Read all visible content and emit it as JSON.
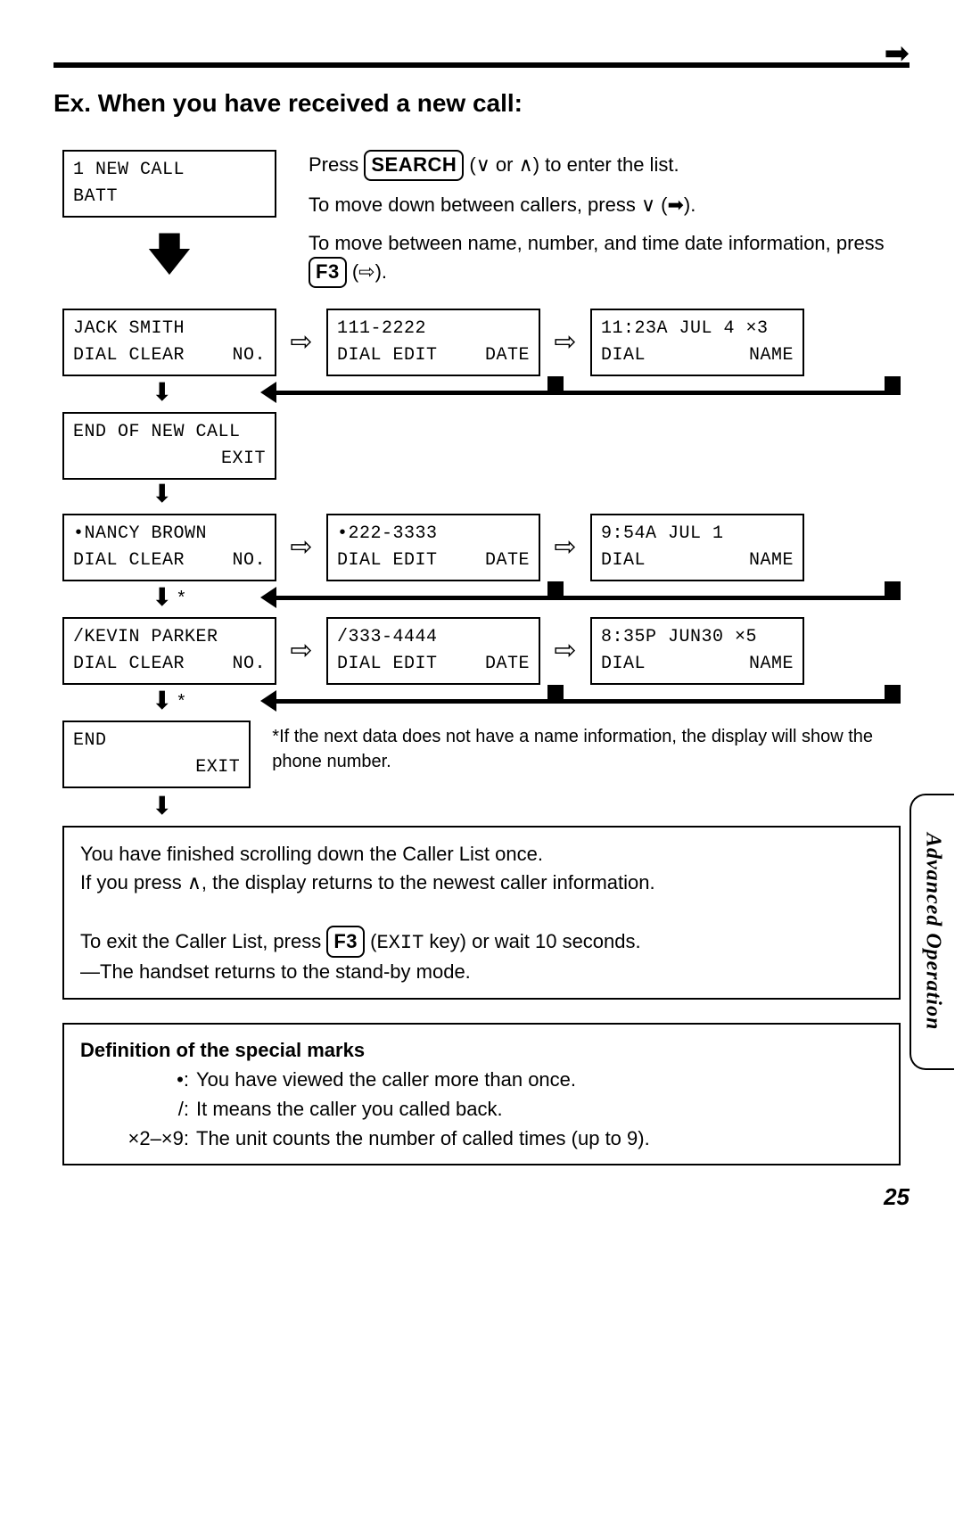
{
  "page_number": "25",
  "side_tab": "Advanced Operation",
  "title": "Ex. When you have received a new call:",
  "intro": {
    "screen": {
      "line1": "1 NEW CALL",
      "line2": "BATT"
    },
    "p1_a": "Press ",
    "key_search": "SEARCH",
    "p1_b": " (∨ or ∧) to enter the list.",
    "p2": "To move down between callers, press ∨ (➡).",
    "p3_a": "To move between name, number, and time date information, press ",
    "key_f3": "F3",
    "p3_b": " (⇨)."
  },
  "rows": [
    {
      "a": {
        "l1": "JACK SMITH",
        "l2a": "DIAL CLEAR",
        "l2b": "NO."
      },
      "b": {
        "l1": "111-2222",
        "l2a": "DIAL EDIT",
        "l2b": "DATE"
      },
      "c": {
        "l1": "11:23A JUL 4 ×3",
        "l2a": "DIAL",
        "l2b": "NAME"
      },
      "star": false
    },
    {
      "mid": {
        "l1": "END OF NEW CALL",
        "l2b": "EXIT"
      }
    },
    {
      "a": {
        "l1": "•NANCY BROWN",
        "l2a": "DIAL CLEAR",
        "l2b": "NO."
      },
      "b": {
        "l1": "•222-3333",
        "l2a": "DIAL EDIT",
        "l2b": "DATE"
      },
      "c": {
        "l1": "9:54A JUL 1",
        "l2a": "DIAL",
        "l2b": "NAME"
      },
      "star": true
    },
    {
      "a": {
        "l1": "/KEVIN PARKER",
        "l2a": "DIAL CLEAR",
        "l2b": "NO."
      },
      "b": {
        "l1": "/333-4444",
        "l2a": "DIAL EDIT",
        "l2b": "DATE"
      },
      "c": {
        "l1": "8:35P JUN30 ×5",
        "l2a": "DIAL",
        "l2b": "NAME"
      },
      "star": true
    }
  ],
  "end_box": {
    "l1": "END",
    "l2b": "EXIT"
  },
  "note_star": "*If the next data does not have a name information, the display will show the phone number.",
  "info": {
    "l1": "You have finished scrolling down the Caller List once.",
    "l2": "If you press ∧, the display returns to the newest caller information.",
    "l3_a": "To exit the Caller List, press ",
    "l3_key": "F3",
    "l3_b": " (",
    "l3_mono": "EXIT",
    "l3_c": " key) or wait 10 seconds.",
    "l4": "—The handset returns to the stand-by mode."
  },
  "defs": {
    "hdr": "Definition of the special marks",
    "d1_lbl": "•:",
    "d1_txt": "You have viewed the caller more than once.",
    "d2_lbl": "/:",
    "d2_txt": "It means the caller you called back.",
    "d3_lbl": "×2–×9:",
    "d3_txt": "The unit counts the number of called times (up to 9)."
  },
  "glyphs": {
    "solid_right": "➡",
    "outline_right": "⇨",
    "solid_down": "⬇",
    "big_down": "🡇",
    "star": "*"
  }
}
